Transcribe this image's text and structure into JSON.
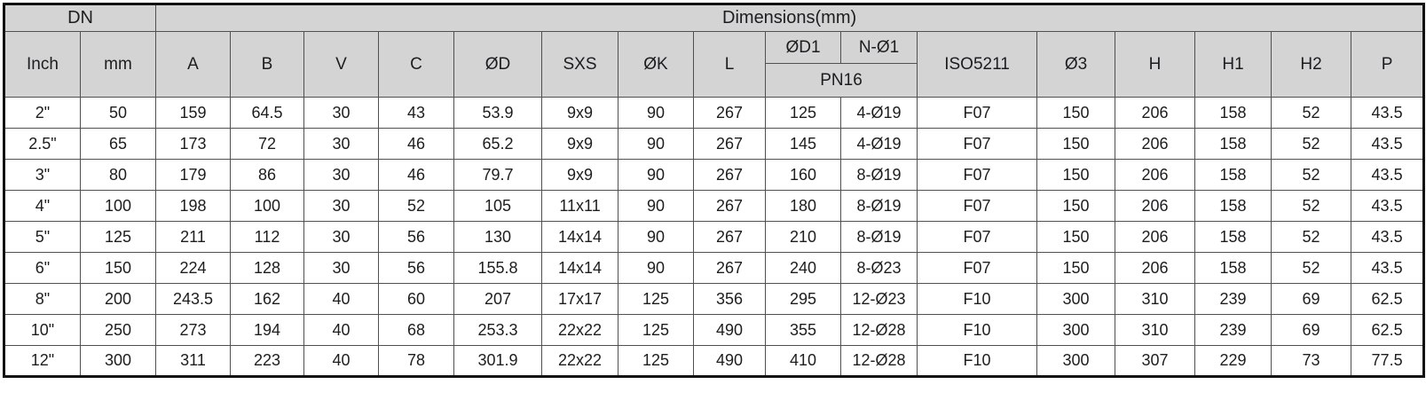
{
  "table": {
    "header": {
      "dn": "DN",
      "dimensions": "Dimensions(mm)",
      "sub": [
        "Inch",
        "mm",
        "A",
        "B",
        "V",
        "C",
        "ØD",
        "SXS",
        "ØK",
        "L"
      ],
      "split_top": [
        "ØD1",
        "N-Ø1"
      ],
      "split_bottom": "PN16",
      "tail": [
        "ISO5211",
        "Ø3",
        "H",
        "H1",
        "H2",
        "P"
      ]
    },
    "rows": [
      [
        "2\"",
        "50",
        "159",
        "64.5",
        "30",
        "43",
        "53.9",
        "9x9",
        "90",
        "267",
        "125",
        "4-Ø19",
        "F07",
        "150",
        "206",
        "158",
        "52",
        "43.5"
      ],
      [
        "2.5\"",
        "65",
        "173",
        "72",
        "30",
        "46",
        "65.2",
        "9x9",
        "90",
        "267",
        "145",
        "4-Ø19",
        "F07",
        "150",
        "206",
        "158",
        "52",
        "43.5"
      ],
      [
        "3\"",
        "80",
        "179",
        "86",
        "30",
        "46",
        "79.7",
        "9x9",
        "90",
        "267",
        "160",
        "8-Ø19",
        "F07",
        "150",
        "206",
        "158",
        "52",
        "43.5"
      ],
      [
        "4\"",
        "100",
        "198",
        "100",
        "30",
        "52",
        "105",
        "11x11",
        "90",
        "267",
        "180",
        "8-Ø19",
        "F07",
        "150",
        "206",
        "158",
        "52",
        "43.5"
      ],
      [
        "5\"",
        "125",
        "211",
        "112",
        "30",
        "56",
        "130",
        "14x14",
        "90",
        "267",
        "210",
        "8-Ø19",
        "F07",
        "150",
        "206",
        "158",
        "52",
        "43.5"
      ],
      [
        "6\"",
        "150",
        "224",
        "128",
        "30",
        "56",
        "155.8",
        "14x14",
        "90",
        "267",
        "240",
        "8-Ø23",
        "F07",
        "150",
        "206",
        "158",
        "52",
        "43.5"
      ],
      [
        "8\"",
        "200",
        "243.5",
        "162",
        "40",
        "60",
        "207",
        "17x17",
        "125",
        "356",
        "295",
        "12-Ø23",
        "F10",
        "300",
        "310",
        "239",
        "69",
        "62.5"
      ],
      [
        "10\"",
        "250",
        "273",
        "194",
        "40",
        "68",
        "253.3",
        "22x22",
        "125",
        "490",
        "355",
        "12-Ø28",
        "F10",
        "300",
        "310",
        "239",
        "69",
        "62.5"
      ],
      [
        "12\"",
        "300",
        "311",
        "223",
        "40",
        "78",
        "301.9",
        "22x22",
        "125",
        "490",
        "410",
        "12-Ø28",
        "F10",
        "300",
        "307",
        "229",
        "73",
        "77.5"
      ]
    ]
  },
  "colors": {
    "header_bg": "#d4d4d5",
    "grid_line": "#4f5052",
    "outer_border": "#111111",
    "text": "#1d1d1f",
    "row_bg": "#ffffff"
  }
}
